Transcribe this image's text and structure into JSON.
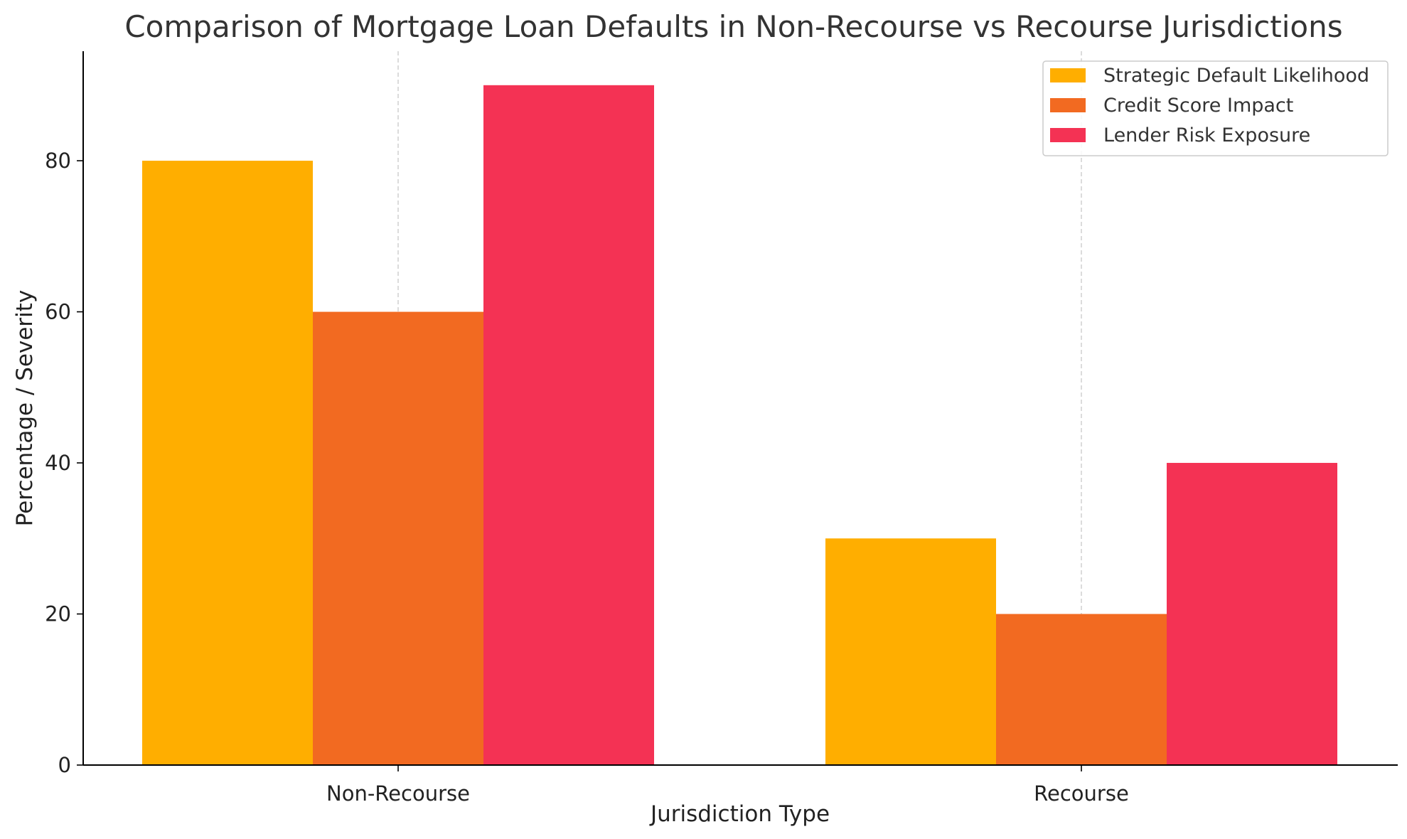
{
  "chart_data": {
    "type": "bar",
    "title": "Comparison of Mortgage Loan Defaults in Non-Recourse vs Recourse Jurisdictions",
    "xlabel": "Jurisdiction Type",
    "ylabel": "Percentage / Severity",
    "categories": [
      "Non-Recourse",
      "Recourse"
    ],
    "series": [
      {
        "name": "Strategic Default Likelihood",
        "values": [
          80,
          30
        ],
        "color": "#FFAE00"
      },
      {
        "name": "Credit Score Impact",
        "values": [
          60,
          20
        ],
        "color": "#F26A21"
      },
      {
        "name": "Lender Risk Exposure",
        "values": [
          90,
          40
        ],
        "color": "#F43254"
      }
    ],
    "ylim": [
      0,
      94.5
    ],
    "yticks": [
      0,
      20,
      40,
      60,
      80
    ],
    "grid": "x-dashed",
    "legend_position": "top-right"
  }
}
